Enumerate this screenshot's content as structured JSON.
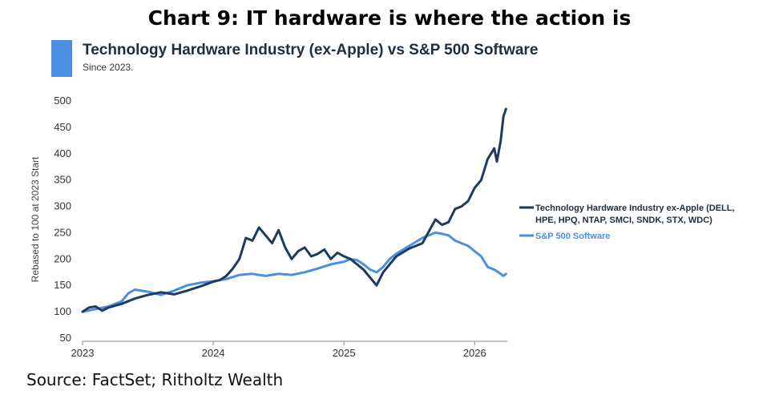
{
  "page": {
    "title": "Chart 9: IT hardware is where the action is",
    "source": "Source: FactSet; Ritholtz Wealth"
  },
  "colors": {
    "accent": "#4a90e2",
    "hardware": "#1f3a5f",
    "software": "#4a90e2"
  },
  "chart_data": {
    "type": "line",
    "title": "Technology Hardware Industry (ex-Apple) vs S&P 500 Software",
    "subtitle": "Since 2023.",
    "ylabel": "Rebased to 100 at 2023 Start",
    "xlabel": "",
    "xlim": [
      2023.0,
      2026.25
    ],
    "ylim": [
      50,
      500
    ],
    "xticks": [
      2023,
      2024,
      2025,
      2026
    ],
    "yticks": [
      50,
      100,
      150,
      200,
      250,
      300,
      350,
      400,
      450,
      500
    ],
    "grid": false,
    "legend_position": "right",
    "series": [
      {
        "name": "Technology Hardware Industry ex-Apple (DELL, HPE, HPQ, NTAP, SMCI, SNDK, STX, WDC)",
        "color": "#1f3a5f",
        "x": [
          2023.0,
          2023.05,
          2023.1,
          2023.15,
          2023.2,
          2023.3,
          2023.4,
          2023.5,
          2023.6,
          2023.7,
          2023.8,
          2023.9,
          2024.0,
          2024.05,
          2024.1,
          2024.15,
          2024.2,
          2024.25,
          2024.3,
          2024.35,
          2024.4,
          2024.45,
          2024.5,
          2024.55,
          2024.6,
          2024.65,
          2024.7,
          2024.75,
          2024.8,
          2024.85,
          2024.9,
          2024.95,
          2025.0,
          2025.05,
          2025.1,
          2025.15,
          2025.2,
          2025.25,
          2025.3,
          2025.35,
          2025.4,
          2025.5,
          2025.6,
          2025.7,
          2025.75,
          2025.8,
          2025.85,
          2025.9,
          2025.95,
          2026.0,
          2026.05,
          2026.1,
          2026.15,
          2026.17,
          2026.2,
          2026.22,
          2026.24
        ],
        "y": [
          100,
          108,
          110,
          102,
          108,
          115,
          125,
          132,
          137,
          133,
          140,
          148,
          157,
          160,
          168,
          182,
          200,
          240,
          235,
          260,
          245,
          230,
          255,
          222,
          200,
          215,
          222,
          205,
          210,
          218,
          200,
          212,
          205,
          200,
          190,
          180,
          165,
          150,
          175,
          190,
          205,
          220,
          230,
          275,
          265,
          270,
          295,
          300,
          310,
          335,
          350,
          390,
          410,
          385,
          425,
          470,
          485
        ]
      },
      {
        "name": "S&P 500 Software",
        "color": "#4a90e2",
        "x": [
          2023.0,
          2023.1,
          2023.2,
          2023.3,
          2023.35,
          2023.4,
          2023.5,
          2023.6,
          2023.7,
          2023.8,
          2023.9,
          2024.0,
          2024.1,
          2024.2,
          2024.3,
          2024.35,
          2024.4,
          2024.5,
          2024.6,
          2024.7,
          2024.8,
          2024.9,
          2025.0,
          2025.05,
          2025.1,
          2025.15,
          2025.2,
          2025.25,
          2025.3,
          2025.35,
          2025.4,
          2025.5,
          2025.6,
          2025.7,
          2025.75,
          2025.8,
          2025.85,
          2025.9,
          2025.95,
          2026.0,
          2026.05,
          2026.1,
          2026.15,
          2026.2,
          2026.22,
          2026.24
        ],
        "y": [
          100,
          105,
          110,
          120,
          135,
          142,
          138,
          132,
          140,
          150,
          155,
          158,
          162,
          170,
          172,
          170,
          168,
          172,
          170,
          175,
          182,
          190,
          195,
          200,
          198,
          190,
          180,
          175,
          185,
          200,
          210,
          225,
          240,
          250,
          248,
          245,
          235,
          230,
          225,
          215,
          205,
          185,
          180,
          172,
          168,
          172
        ]
      }
    ]
  }
}
